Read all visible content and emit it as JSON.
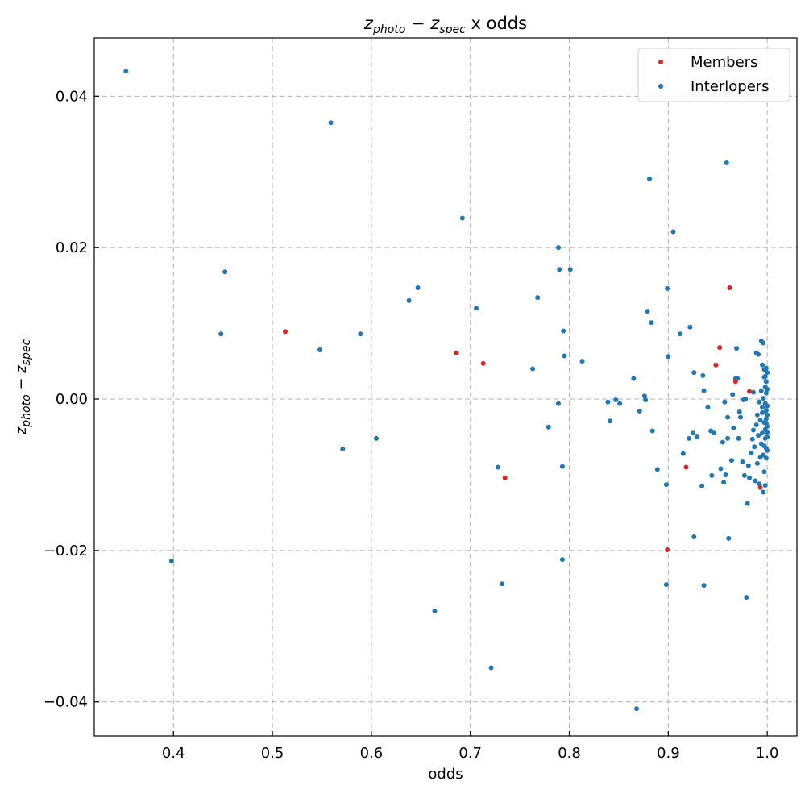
{
  "chart_data": {
    "type": "scatter",
    "title": "z_photo − z_spec x odds",
    "title_math": {
      "a": "z",
      "a_sub": "photo",
      "b": "z",
      "b_sub": "spec",
      "tail": " x odds"
    },
    "xlabel": "odds",
    "ylabel": "z_photo − z_spec",
    "xlim": [
      0.32,
      1.03
    ],
    "ylim": [
      -0.0445,
      0.0477
    ],
    "xticks": [
      0.4,
      0.5,
      0.6,
      0.7,
      0.8,
      0.9,
      1.0
    ],
    "xtick_labels": [
      "0.4",
      "0.5",
      "0.6",
      "0.7",
      "0.8",
      "0.9",
      "1.0"
    ],
    "yticks": [
      -0.04,
      -0.02,
      0.0,
      0.02,
      0.04
    ],
    "ytick_labels": [
      "−0.04",
      "−0.02",
      "0.00",
      "0.02",
      "0.04"
    ],
    "grid": true,
    "legend_position": "top-right",
    "series": [
      {
        "name": "Members",
        "color": "#d62728",
        "points": [
          [
            0.513,
            0.0089
          ],
          [
            0.686,
            0.0061
          ],
          [
            0.713,
            0.0047
          ],
          [
            0.735,
            -0.0104
          ],
          [
            0.899,
            -0.0199
          ],
          [
            0.918,
            -0.009
          ],
          [
            0.948,
            0.0045
          ],
          [
            0.952,
            0.0068
          ],
          [
            0.962,
            0.0147
          ],
          [
            0.968,
            0.0023
          ],
          [
            0.982,
            0.001
          ],
          [
            0.993,
            -0.0117
          ]
        ]
      },
      {
        "name": "Interlopers",
        "color": "#1f77b4",
        "points": [
          [
            0.352,
            0.0433
          ],
          [
            0.398,
            -0.0214
          ],
          [
            0.448,
            0.0086
          ],
          [
            0.452,
            0.0168
          ],
          [
            0.548,
            0.0065
          ],
          [
            0.559,
            0.0365
          ],
          [
            0.571,
            -0.0066
          ],
          [
            0.589,
            0.0086
          ],
          [
            0.605,
            -0.0052
          ],
          [
            0.638,
            0.013
          ],
          [
            0.647,
            0.0147
          ],
          [
            0.664,
            -0.028
          ],
          [
            0.692,
            0.0239
          ],
          [
            0.706,
            0.012
          ],
          [
            0.721,
            -0.0355
          ],
          [
            0.728,
            -0.009
          ],
          [
            0.732,
            -0.0244
          ],
          [
            0.763,
            0.004
          ],
          [
            0.768,
            0.0134
          ],
          [
            0.779,
            -0.0037
          ],
          [
            0.789,
            -0.0006
          ],
          [
            0.789,
            0.02
          ],
          [
            0.79,
            0.0171
          ],
          [
            0.793,
            -0.0089
          ],
          [
            0.793,
            -0.0212
          ],
          [
            0.794,
            0.009
          ],
          [
            0.795,
            0.0057
          ],
          [
            0.801,
            0.0171
          ],
          [
            0.813,
            0.005
          ],
          [
            0.839,
            -0.0004
          ],
          [
            0.841,
            -0.0029
          ],
          [
            0.847,
            -0.0001
          ],
          [
            0.851,
            -0.0006
          ],
          [
            0.865,
            0.0027
          ],
          [
            0.868,
            -0.0409
          ],
          [
            0.871,
            -0.0016
          ],
          [
            0.876,
            0.0004
          ],
          [
            0.877,
            -0.0001
          ],
          [
            0.879,
            0.0116
          ],
          [
            0.881,
            0.0291
          ],
          [
            0.883,
            0.0101
          ],
          [
            0.884,
            -0.0042
          ],
          [
            0.889,
            -0.0093
          ],
          [
            0.898,
            -0.0113
          ],
          [
            0.898,
            -0.0245
          ],
          [
            0.899,
            0.0146
          ],
          [
            0.9,
            0.0056
          ],
          [
            0.905,
            0.0221
          ],
          [
            0.912,
            0.0086
          ],
          [
            0.915,
            -0.0072
          ],
          [
            0.921,
            -0.0052
          ],
          [
            0.922,
            0.0095
          ],
          [
            0.925,
            -0.0045
          ],
          [
            0.926,
            0.0035
          ],
          [
            0.926,
            -0.0182
          ],
          [
            0.929,
            -0.005
          ],
          [
            0.934,
            -0.0115
          ],
          [
            0.935,
            0.0031
          ],
          [
            0.936,
            0.0011
          ],
          [
            0.936,
            -0.0246
          ],
          [
            0.94,
            -0.0011
          ],
          [
            0.943,
            -0.0042
          ],
          [
            0.944,
            -0.0101
          ],
          [
            0.946,
            -0.0045
          ],
          [
            0.953,
            -0.0092
          ],
          [
            0.955,
            -0.0057
          ],
          [
            0.956,
            -0.011
          ],
          [
            0.957,
            -0.0004
          ],
          [
            0.958,
            -0.01
          ],
          [
            0.959,
            0.0312
          ],
          [
            0.96,
            -0.0024
          ],
          [
            0.96,
            -0.0052
          ],
          [
            0.961,
            -0.0184
          ],
          [
            0.964,
            -0.0081
          ],
          [
            0.965,
            0.0006
          ],
          [
            0.966,
            -0.0038
          ],
          [
            0.968,
            0.0027
          ],
          [
            0.969,
            0.0067
          ],
          [
            0.97,
            0.0027
          ],
          [
            0.971,
            -0.0052
          ],
          [
            0.972,
            -0.0017
          ],
          [
            0.973,
            -0.0024
          ],
          [
            0.975,
            -0.0083
          ],
          [
            0.976,
            -0.0001
          ],
          [
            0.977,
            -0.0101
          ],
          [
            0.978,
            0.0
          ],
          [
            0.979,
            -0.0262
          ],
          [
            0.98,
            -0.0138
          ],
          [
            0.981,
            -0.0088
          ],
          [
            0.982,
            -0.0104
          ],
          [
            0.984,
            -0.0071
          ],
          [
            0.985,
            -0.0053
          ],
          [
            0.986,
            -0.0041
          ],
          [
            0.986,
            0.0009
          ],
          [
            0.987,
            -0.0063
          ],
          [
            0.988,
            -0.0108
          ],
          [
            0.989,
            -0.0034
          ],
          [
            0.989,
            0.0061
          ],
          [
            0.99,
            -0.0085
          ],
          [
            0.99,
            -0.0021
          ],
          [
            0.991,
            -0.0048
          ],
          [
            0.991,
            0.0059
          ],
          [
            0.992,
            -0.0112
          ],
          [
            0.992,
            -0.0004
          ],
          [
            0.993,
            -0.0077
          ],
          [
            0.993,
            -0.0028
          ],
          [
            0.994,
            0.0077
          ],
          [
            0.994,
            -0.0059
          ],
          [
            0.994,
            0.0011
          ],
          [
            0.995,
            -0.0011
          ],
          [
            0.995,
            -0.0045
          ],
          [
            0.995,
            0.0045
          ],
          [
            0.995,
            -0.0018
          ],
          [
            0.996,
            -0.0123
          ],
          [
            0.996,
            -0.0074
          ],
          [
            0.996,
            0.0074
          ],
          [
            0.996,
            0.0001
          ],
          [
            0.997,
            0.0029
          ],
          [
            0.997,
            -0.0031
          ],
          [
            0.997,
            -0.0062
          ],
          [
            0.997,
            -0.0096
          ],
          [
            0.997,
            0.0039
          ],
          [
            0.998,
            -0.0114
          ],
          [
            0.998,
            -0.0006
          ],
          [
            0.998,
            0.0016
          ],
          [
            0.998,
            -0.0052
          ],
          [
            0.998,
            -0.004
          ],
          [
            0.998,
            0.003
          ],
          [
            0.999,
            -0.0078
          ],
          [
            0.999,
            0.0041
          ],
          [
            0.999,
            -0.0015
          ],
          [
            0.999,
            -0.0032
          ],
          [
            0.999,
            0.0008
          ],
          [
            0.999,
            -0.0026
          ],
          [
            0.999,
            -0.0065
          ],
          [
            0.999,
            0.0023
          ],
          [
            1.0,
            -0.0044
          ],
          [
            1.0,
            -0.0009
          ],
          [
            1.0,
            0.0035
          ],
          [
            1.0,
            -0.005
          ],
          [
            1.0,
            -0.0021
          ],
          [
            1.0,
            0.0013
          ],
          [
            1.0,
            -0.0068
          ],
          [
            1.0,
            -0.0036
          ]
        ]
      }
    ]
  }
}
